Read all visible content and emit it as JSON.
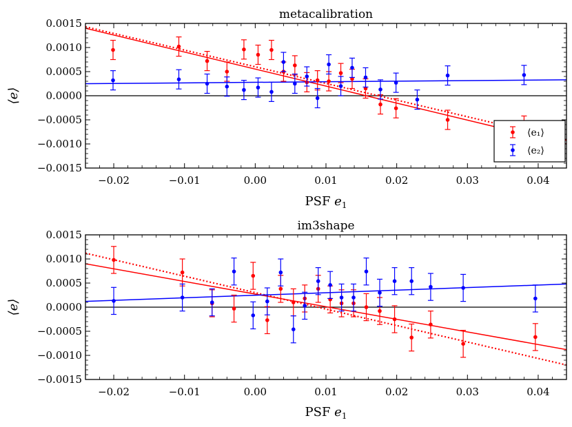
{
  "chart_data": [
    {
      "type": "scatter",
      "title": "metacalibration",
      "xlabel": "PSF e_1",
      "ylabel": "⟨e⟩",
      "xlim": [
        -0.024,
        0.044
      ],
      "ylim": [
        -0.0015,
        0.0015
      ],
      "xticks": [
        -0.02,
        -0.01,
        0.0,
        0.01,
        0.02,
        0.03,
        0.04
      ],
      "xtick_labels": [
        "−0.02",
        "−0.01",
        "0.00",
        "0.01",
        "0.02",
        "0.03",
        "0.04"
      ],
      "yticks": [
        -0.0015,
        -0.001,
        -0.0005,
        0.0,
        0.0005,
        0.001,
        0.0015
      ],
      "ytick_labels": [
        "−0.0015",
        "−0.0010",
        "−0.0005",
        "0.0000",
        "0.0005",
        "0.0010",
        "0.0015"
      ],
      "legend": {
        "position": "lower-right",
        "entries": [
          "⟨e₁⟩",
          "⟨e₂⟩"
        ]
      },
      "series": [
        {
          "name": "⟨e₁⟩",
          "color": "#ff0000",
          "points": [
            [
              -0.0201,
              0.00095,
              0.0002
            ],
            [
              -0.0108,
              0.00102,
              0.0002
            ],
            [
              -0.0068,
              0.00072,
              0.0002
            ],
            [
              -0.004,
              0.0005,
              0.0002
            ],
            [
              -0.0016,
              0.00096,
              0.0002
            ],
            [
              0.0004,
              0.00085,
              0.0002
            ],
            [
              0.0023,
              0.00095,
              0.0002
            ],
            [
              0.004,
              0.0005,
              0.0002
            ],
            [
              0.0056,
              0.00063,
              0.0002
            ],
            [
              0.0073,
              0.00028,
              0.0002
            ],
            [
              0.0088,
              0.00032,
              0.0002
            ],
            [
              0.0104,
              0.0003,
              0.0002
            ],
            [
              0.0121,
              0.00047,
              0.0002
            ],
            [
              0.0137,
              0.00035,
              0.0002
            ],
            [
              0.0156,
              0.00015,
              0.0002
            ],
            [
              0.0177,
              -0.00018,
              0.0002
            ],
            [
              0.0199,
              -0.00026,
              0.0002
            ],
            [
              0.0272,
              -0.0005,
              0.0002
            ],
            [
              0.038,
              -0.00062,
              0.0002
            ]
          ],
          "fit_solid": [
            [
              -0.024,
              0.0014
            ],
            [
              0.044,
              -0.001
            ]
          ],
          "fit_dotted": [
            [
              -0.024,
              0.00143
            ],
            [
              0.044,
              -0.00092
            ]
          ]
        },
        {
          "name": "⟨e₂⟩",
          "color": "#0000ff",
          "points": [
            [
              -0.0201,
              0.00032,
              0.0002
            ],
            [
              -0.0108,
              0.00034,
              0.0002
            ],
            [
              -0.0068,
              0.00025,
              0.0002
            ],
            [
              -0.004,
              0.00019,
              0.0002
            ],
            [
              -0.0016,
              0.00012,
              0.0002
            ],
            [
              0.0004,
              0.00017,
              0.0002
            ],
            [
              0.0023,
              8e-05,
              0.0002
            ],
            [
              0.004,
              0.0007,
              0.0002
            ],
            [
              0.0056,
              0.00025,
              0.0002
            ],
            [
              0.0073,
              0.0004,
              0.0002
            ],
            [
              0.0088,
              -5e-05,
              0.0002
            ],
            [
              0.0104,
              0.00065,
              0.0002
            ],
            [
              0.0121,
              0.0002,
              0.0002
            ],
            [
              0.0137,
              0.00058,
              0.0002
            ],
            [
              0.0156,
              0.00038,
              0.0002
            ],
            [
              0.0177,
              0.00013,
              0.0002
            ],
            [
              0.0199,
              0.00027,
              0.0002
            ],
            [
              0.0229,
              -8e-05,
              0.0002
            ],
            [
              0.0272,
              0.00042,
              0.0002
            ],
            [
              0.038,
              0.00043,
              0.0002
            ]
          ],
          "fit_solid": [
            [
              -0.024,
              0.00025
            ],
            [
              0.044,
              0.00033
            ]
          ]
        }
      ],
      "reference_line": 0.0
    },
    {
      "type": "scatter",
      "title": "im3shape",
      "xlabel": "PSF e_1",
      "ylabel": "⟨e⟩",
      "xlim": [
        -0.024,
        0.044
      ],
      "ylim": [
        -0.0015,
        0.0015
      ],
      "xticks": [
        -0.02,
        -0.01,
        0.0,
        0.01,
        0.02,
        0.03,
        0.04
      ],
      "xtick_labels": [
        "−0.02",
        "−0.01",
        "0.00",
        "0.01",
        "0.02",
        "0.03",
        "0.04"
      ],
      "yticks": [
        -0.0015,
        -0.001,
        -0.0005,
        0.0,
        0.0005,
        0.001,
        0.0015
      ],
      "ytick_labels": [
        "−0.0015",
        "−0.0010",
        "−0.0005",
        "0.0000",
        "0.0005",
        "0.0010",
        "0.0015"
      ],
      "series": [
        {
          "name": "⟨e₁⟩",
          "color": "#ff0000",
          "points": [
            [
              -0.02,
              0.00098,
              0.00028
            ],
            [
              -0.0103,
              0.00072,
              0.00028
            ],
            [
              -0.0061,
              8e-05,
              0.00028
            ],
            [
              -0.003,
              -3e-05,
              0.00028
            ],
            [
              -0.0003,
              0.00065,
              0.00028
            ],
            [
              0.0017,
              -0.00027,
              0.00028
            ],
            [
              0.0036,
              0.00038,
              0.00028
            ],
            [
              0.0054,
              0.0001,
              0.00028
            ],
            [
              0.007,
              0.00018,
              0.00028
            ],
            [
              0.0089,
              0.00038,
              0.00028
            ],
            [
              0.0106,
              0.00016,
              0.00028
            ],
            [
              0.0122,
              8e-05,
              0.00028
            ],
            [
              0.0139,
              8e-05,
              0.00028
            ],
            [
              0.0157,
              0.0,
              0.00028
            ],
            [
              0.0176,
              -8e-05,
              0.00028
            ],
            [
              0.0197,
              -0.00025,
              0.00028
            ],
            [
              0.0221,
              -0.00063,
              0.00028
            ],
            [
              0.0248,
              -0.00036,
              0.00028
            ],
            [
              0.0294,
              -0.00076,
              0.00028
            ],
            [
              0.0396,
              -0.00062,
              0.00028
            ]
          ],
          "fit_solid": [
            [
              -0.024,
              0.0009
            ],
            [
              0.044,
              -0.00088
            ]
          ],
          "fit_dotted": [
            [
              -0.024,
              0.00112
            ],
            [
              0.044,
              -0.0012
            ]
          ]
        },
        {
          "name": "⟨e₂⟩",
          "color": "#0000ff",
          "points": [
            [
              -0.02,
              0.00013,
              0.00028
            ],
            [
              -0.0103,
              0.0002,
              0.00028
            ],
            [
              -0.0061,
              0.0001,
              0.00028
            ],
            [
              -0.003,
              0.00074,
              0.00028
            ],
            [
              -0.0003,
              -0.00017,
              0.00028
            ],
            [
              0.0017,
              0.00012,
              0.00028
            ],
            [
              0.0036,
              0.00072,
              0.00028
            ],
            [
              0.0054,
              -0.00046,
              0.00028
            ],
            [
              0.007,
              3e-05,
              0.00028
            ],
            [
              0.0089,
              0.00054,
              0.00028
            ],
            [
              0.0106,
              0.00046,
              0.00028
            ],
            [
              0.0122,
              0.0002,
              0.00028
            ],
            [
              0.0139,
              0.0002,
              0.00028
            ],
            [
              0.0157,
              0.00074,
              0.00028
            ],
            [
              0.0176,
              0.0003,
              0.00028
            ],
            [
              0.0197,
              0.00054,
              0.00028
            ],
            [
              0.0221,
              0.00054,
              0.00028
            ],
            [
              0.0248,
              0.00042,
              0.00028
            ],
            [
              0.0294,
              0.0004,
              0.00028
            ],
            [
              0.0396,
              0.00018,
              0.00028
            ]
          ],
          "fit_solid": [
            [
              -0.024,
              0.00012
            ],
            [
              0.044,
              0.00048
            ]
          ]
        }
      ],
      "reference_line": 0.0
    }
  ]
}
